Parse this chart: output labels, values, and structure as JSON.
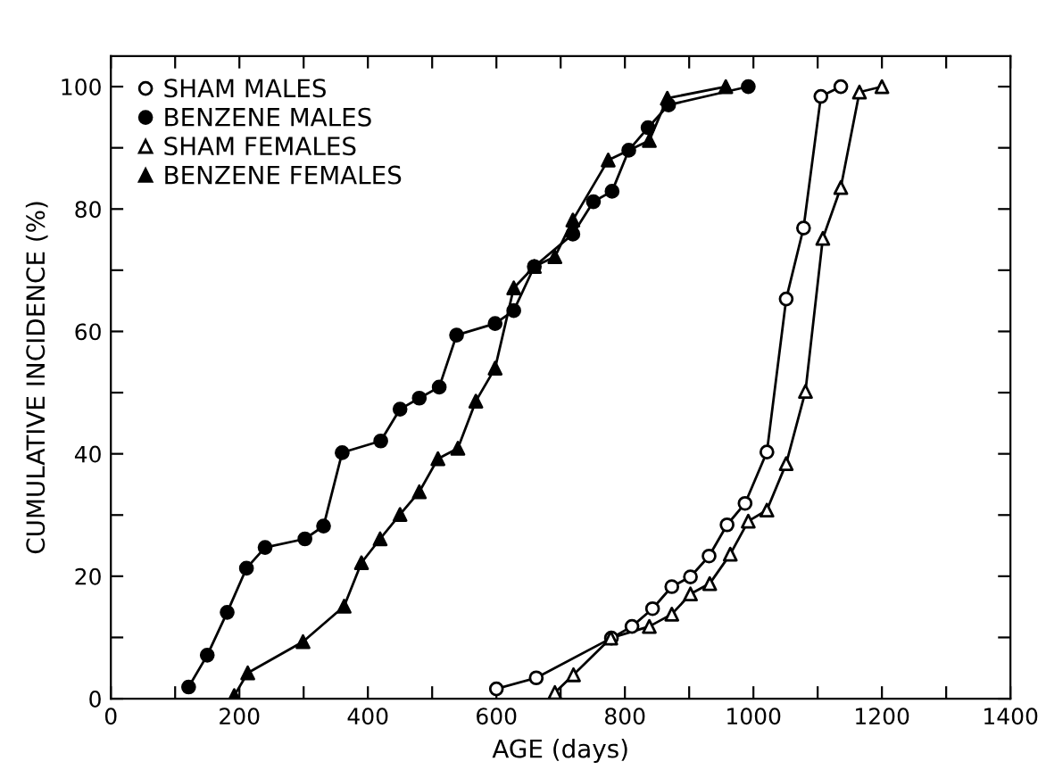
{
  "chart_data": {
    "type": "line",
    "xlabel": "AGE (days)",
    "ylabel": "CUMULATIVE INCIDENCE (%)",
    "xlim": [
      0,
      1400
    ],
    "ylim": [
      0,
      105
    ],
    "xticks": [
      0,
      {
        "value": 100,
        "label": null
      },
      200,
      {
        "value": 300,
        "label": null
      },
      400,
      {
        "value": 500,
        "label": null
      },
      600,
      {
        "value": 700,
        "label": null
      },
      800,
      {
        "value": 900,
        "label": null
      },
      1000,
      {
        "value": 1100,
        "label": null
      },
      1200,
      {
        "value": 1300,
        "label": null
      },
      1400
    ],
    "yticks": [
      0,
      {
        "value": 10,
        "label": null
      },
      20,
      {
        "value": 30,
        "label": null
      },
      40,
      {
        "value": 50,
        "label": null
      },
      60,
      {
        "value": 70,
        "label": null
      },
      80,
      {
        "value": 90,
        "label": null
      },
      100
    ],
    "grid": false,
    "legend": "top left",
    "line_style": "solid",
    "series": [
      {
        "name": "SHAM MALES",
        "color": "#000000",
        "marker": "circle",
        "colors": [
          "#ffffff",
          "#ffffff",
          "#ffffff",
          "#ffffff",
          "#ffffff",
          "#ffffff",
          "#ffffff",
          "#ffffff",
          "#ffffff",
          "#ffffff",
          "#ffffff",
          "#ffffff",
          "#ffffff",
          "#ffffff",
          "#ffffff"
        ],
        "x": [
          600,
          662,
          779,
          811,
          843,
          873,
          902,
          931,
          959,
          987,
          1021,
          1051,
          1078,
          1105,
          1136
        ],
        "values": [
          1.6,
          3.4,
          9.9,
          11.8,
          14.7,
          18.3,
          19.9,
          23.3,
          28.4,
          31.9,
          40.3,
          65.3,
          76.9,
          98.4,
          100
        ]
      },
      {
        "name": "BENZENE MALES",
        "color": "#000000",
        "marker": "circle",
        "x": [
          121,
          150,
          181,
          211,
          240,
          302,
          331,
          360,
          420,
          450,
          480,
          511,
          538,
          598,
          627,
          659,
          719,
          751,
          780,
          806,
          836,
          868,
          992
        ],
        "values": [
          1.9,
          7.1,
          14.1,
          21.3,
          24.7,
          26.1,
          28.2,
          40.2,
          42.1,
          47.3,
          49.1,
          50.9,
          59.4,
          61.3,
          63.4,
          70.6,
          75.9,
          81.2,
          82.9,
          89.6,
          93.3,
          97,
          100
        ]
      },
      {
        "name": "SHAM FEMALES",
        "color": "#000000",
        "marker": "triangle",
        "colors": [
          "#ffffff",
          "#ffffff",
          "#ffffff",
          "#ffffff",
          "#ffffff",
          "#ffffff",
          "#ffffff",
          "#ffffff",
          "#ffffff",
          "#ffffff",
          "#ffffff",
          "#ffffff",
          "#ffffff",
          "#ffffff",
          "#ffffff",
          "#ffffff"
        ],
        "x": [
          691,
          720,
          778,
          838,
          873,
          902,
          932,
          964,
          992,
          1021,
          1051,
          1081,
          1108,
          1136,
          1165,
          1200
        ],
        "values": [
          1,
          3.9,
          9.9,
          11.8,
          13.8,
          17.1,
          18.8,
          23.6,
          29.0,
          30.8,
          38.4,
          50.2,
          75.2,
          83.5,
          99.1,
          100
        ]
      },
      {
        "name": "BENZENE FEMALES",
        "color": "#000000",
        "marker": "triangle",
        "x": [
          192,
          213,
          299,
          363,
          390,
          419,
          450,
          480,
          509,
          540,
          568,
          598,
          627,
          659,
          691,
          719,
          774,
          838,
          866,
          957
        ],
        "values": [
          0.5,
          4.2,
          9.3,
          15.1,
          22.2,
          26.1,
          30.1,
          33.8,
          39.2,
          40.9,
          48.6,
          54.0,
          67.1,
          70.6,
          72.2,
          78.2,
          88,
          91.2,
          98.1,
          100
        ]
      }
    ]
  }
}
